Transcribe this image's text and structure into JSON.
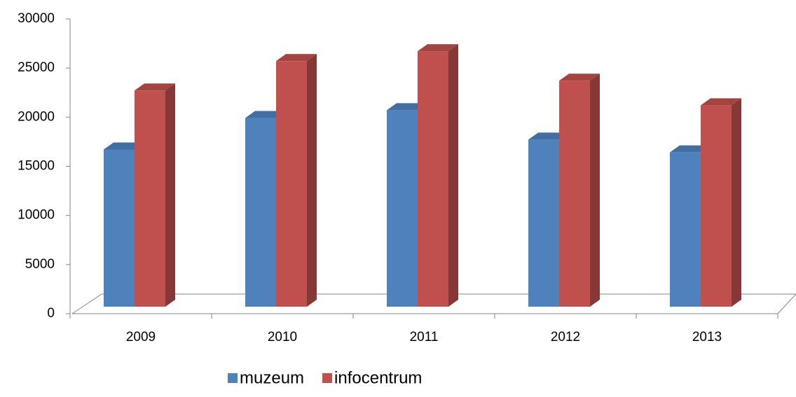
{
  "chart_data": {
    "type": "bar3d",
    "categories": [
      "2009",
      "2010",
      "2011",
      "2012",
      "2013"
    ],
    "series": [
      {
        "name": "muzeum",
        "color": "#4f81bd",
        "values": [
          16000,
          19200,
          20000,
          17000,
          15700
        ]
      },
      {
        "name": "infocentrum",
        "color": "#c0504d",
        "values": [
          22000,
          25000,
          26000,
          23000,
          20500
        ]
      }
    ],
    "ylim": [
      0,
      30000
    ],
    "yticks": [
      0,
      5000,
      10000,
      15000,
      20000,
      25000,
      30000
    ],
    "legend": "bottom"
  }
}
